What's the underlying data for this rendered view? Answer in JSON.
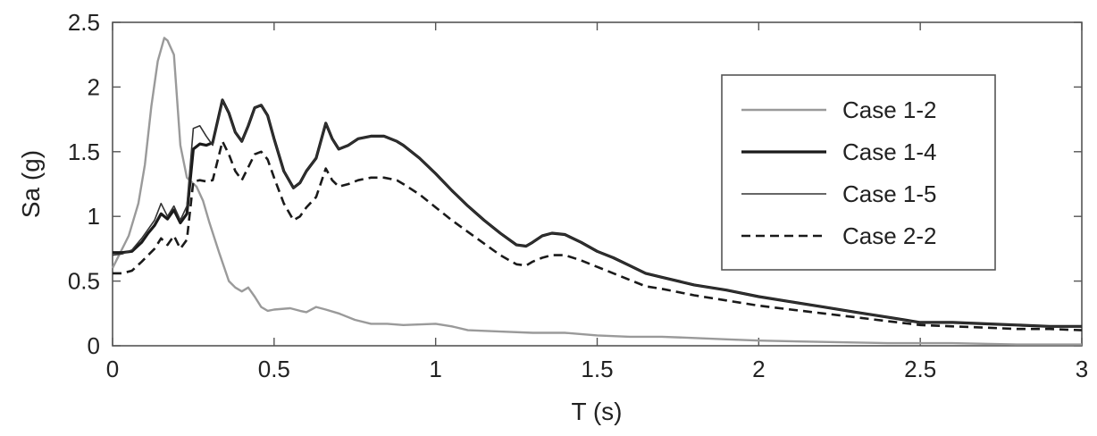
{
  "chart_data": {
    "type": "line",
    "xlabel": "T (s)",
    "ylabel": "Sa (g)",
    "xlim": [
      0,
      3
    ],
    "ylim": [
      0,
      2.5
    ],
    "x_ticks": [
      "0",
      "0.5",
      "1",
      "1.5",
      "2",
      "2.5",
      "3"
    ],
    "y_ticks": [
      "0",
      "0.5",
      "1",
      "1.5",
      "2",
      "2.5"
    ],
    "grid": false,
    "legend_position": "top-right",
    "series": [
      {
        "name": "Case 1-2",
        "color": "#9a9a9a",
        "dash": "solid",
        "x": [
          0,
          0.05,
          0.08,
          0.1,
          0.12,
          0.14,
          0.16,
          0.17,
          0.19,
          0.21,
          0.23,
          0.26,
          0.28,
          0.3,
          0.33,
          0.36,
          0.38,
          0.4,
          0.42,
          0.44,
          0.46,
          0.48,
          0.5,
          0.55,
          0.58,
          0.6,
          0.63,
          0.66,
          0.7,
          0.75,
          0.8,
          0.85,
          0.9,
          1.0,
          1.05,
          1.1,
          1.2,
          1.3,
          1.4,
          1.5,
          1.6,
          1.7,
          1.8,
          1.9,
          2.0,
          2.2,
          2.4,
          2.6,
          2.8,
          3.0
        ],
        "y": [
          0.6,
          0.85,
          1.1,
          1.4,
          1.85,
          2.2,
          2.38,
          2.36,
          2.25,
          1.55,
          1.3,
          1.23,
          1.12,
          0.95,
          0.72,
          0.5,
          0.45,
          0.42,
          0.45,
          0.38,
          0.3,
          0.27,
          0.28,
          0.29,
          0.27,
          0.26,
          0.3,
          0.28,
          0.25,
          0.2,
          0.17,
          0.17,
          0.16,
          0.17,
          0.15,
          0.12,
          0.11,
          0.1,
          0.1,
          0.08,
          0.07,
          0.07,
          0.06,
          0.05,
          0.04,
          0.03,
          0.02,
          0.02,
          0.01,
          0.01
        ]
      },
      {
        "name": "Case 1-4",
        "color": "#1a1a1a",
        "dash": "solid",
        "width": 3.2,
        "x": [
          0,
          0.03,
          0.06,
          0.09,
          0.11,
          0.13,
          0.15,
          0.17,
          0.19,
          0.21,
          0.23,
          0.25,
          0.27,
          0.29,
          0.31,
          0.34,
          0.36,
          0.38,
          0.4,
          0.42,
          0.44,
          0.46,
          0.48,
          0.5,
          0.53,
          0.56,
          0.58,
          0.6,
          0.63,
          0.66,
          0.68,
          0.7,
          0.73,
          0.76,
          0.8,
          0.84,
          0.88,
          0.9,
          0.95,
          1.0,
          1.05,
          1.1,
          1.15,
          1.2,
          1.25,
          1.28,
          1.3,
          1.33,
          1.36,
          1.4,
          1.45,
          1.5,
          1.55,
          1.6,
          1.65,
          1.7,
          1.8,
          1.9,
          2.0,
          2.1,
          2.2,
          2.3,
          2.4,
          2.5,
          2.6,
          2.7,
          2.8,
          2.9,
          3.0
        ],
        "y": [
          0.72,
          0.72,
          0.73,
          0.8,
          0.87,
          0.93,
          1.02,
          0.98,
          1.05,
          0.95,
          1.02,
          1.52,
          1.56,
          1.55,
          1.57,
          1.9,
          1.8,
          1.65,
          1.58,
          1.7,
          1.84,
          1.86,
          1.78,
          1.6,
          1.35,
          1.22,
          1.26,
          1.35,
          1.45,
          1.72,
          1.6,
          1.52,
          1.55,
          1.6,
          1.62,
          1.62,
          1.58,
          1.55,
          1.45,
          1.33,
          1.2,
          1.08,
          0.97,
          0.87,
          0.78,
          0.77,
          0.8,
          0.85,
          0.87,
          0.86,
          0.8,
          0.73,
          0.68,
          0.62,
          0.56,
          0.53,
          0.47,
          0.43,
          0.38,
          0.34,
          0.3,
          0.26,
          0.22,
          0.18,
          0.18,
          0.17,
          0.16,
          0.15,
          0.15
        ]
      },
      {
        "name": "Case 1-5",
        "color": "#333333",
        "dash": "solid",
        "width": 1.6,
        "x": [
          0,
          0.03,
          0.06,
          0.09,
          0.11,
          0.13,
          0.15,
          0.17,
          0.19,
          0.21,
          0.23,
          0.25,
          0.27,
          0.29,
          0.31,
          0.34,
          0.36,
          0.38,
          0.4,
          0.42,
          0.44,
          0.46,
          0.48,
          0.5,
          0.53,
          0.56,
          0.58,
          0.6,
          0.63,
          0.66,
          0.68,
          0.7,
          0.73,
          0.76,
          0.8,
          0.84,
          0.88,
          0.9,
          0.95,
          1.0,
          1.05,
          1.1,
          1.15,
          1.2,
          1.25,
          1.28,
          1.3,
          1.33,
          1.36,
          1.4,
          1.45,
          1.5,
          1.55,
          1.6,
          1.65,
          1.7,
          1.8,
          1.9,
          2.0,
          2.1,
          2.2,
          2.3,
          2.4,
          2.5,
          2.6,
          2.7,
          2.8,
          2.9,
          3.0
        ],
        "y": [
          0.7,
          0.71,
          0.74,
          0.83,
          0.9,
          0.97,
          1.1,
          1.0,
          1.08,
          0.97,
          1.08,
          1.68,
          1.7,
          1.62,
          1.55,
          1.9,
          1.8,
          1.65,
          1.58,
          1.7,
          1.84,
          1.86,
          1.78,
          1.6,
          1.35,
          1.22,
          1.26,
          1.35,
          1.45,
          1.72,
          1.6,
          1.52,
          1.55,
          1.6,
          1.62,
          1.62,
          1.58,
          1.55,
          1.45,
          1.33,
          1.2,
          1.08,
          0.97,
          0.87,
          0.78,
          0.77,
          0.8,
          0.85,
          0.87,
          0.86,
          0.8,
          0.73,
          0.68,
          0.62,
          0.56,
          0.53,
          0.47,
          0.43,
          0.38,
          0.34,
          0.3,
          0.26,
          0.22,
          0.18,
          0.18,
          0.17,
          0.16,
          0.15,
          0.15
        ]
      },
      {
        "name": "Case 2-2",
        "color": "#1a1a1a",
        "dash": "dashed",
        "width": 2.6,
        "x": [
          0,
          0.03,
          0.06,
          0.09,
          0.11,
          0.13,
          0.15,
          0.17,
          0.19,
          0.21,
          0.23,
          0.25,
          0.27,
          0.29,
          0.31,
          0.34,
          0.36,
          0.38,
          0.4,
          0.42,
          0.44,
          0.46,
          0.48,
          0.5,
          0.53,
          0.56,
          0.58,
          0.6,
          0.63,
          0.66,
          0.68,
          0.7,
          0.73,
          0.76,
          0.8,
          0.84,
          0.88,
          0.9,
          0.95,
          1.0,
          1.05,
          1.1,
          1.15,
          1.2,
          1.25,
          1.28,
          1.3,
          1.33,
          1.36,
          1.4,
          1.45,
          1.5,
          1.55,
          1.6,
          1.65,
          1.7,
          1.8,
          1.9,
          2.0,
          2.1,
          2.2,
          2.3,
          2.4,
          2.5,
          2.6,
          2.7,
          2.8,
          2.9,
          3.0
        ],
        "y": [
          0.56,
          0.56,
          0.58,
          0.65,
          0.7,
          0.75,
          0.83,
          0.78,
          0.85,
          0.75,
          0.82,
          1.27,
          1.28,
          1.27,
          1.28,
          1.58,
          1.48,
          1.35,
          1.28,
          1.38,
          1.48,
          1.5,
          1.44,
          1.3,
          1.1,
          0.97,
          1.0,
          1.07,
          1.15,
          1.37,
          1.28,
          1.23,
          1.25,
          1.28,
          1.3,
          1.3,
          1.28,
          1.25,
          1.17,
          1.07,
          0.97,
          0.88,
          0.79,
          0.7,
          0.63,
          0.62,
          0.65,
          0.68,
          0.7,
          0.7,
          0.66,
          0.61,
          0.56,
          0.51,
          0.46,
          0.44,
          0.39,
          0.35,
          0.31,
          0.28,
          0.25,
          0.22,
          0.19,
          0.16,
          0.15,
          0.14,
          0.13,
          0.13,
          0.12
        ]
      }
    ]
  }
}
